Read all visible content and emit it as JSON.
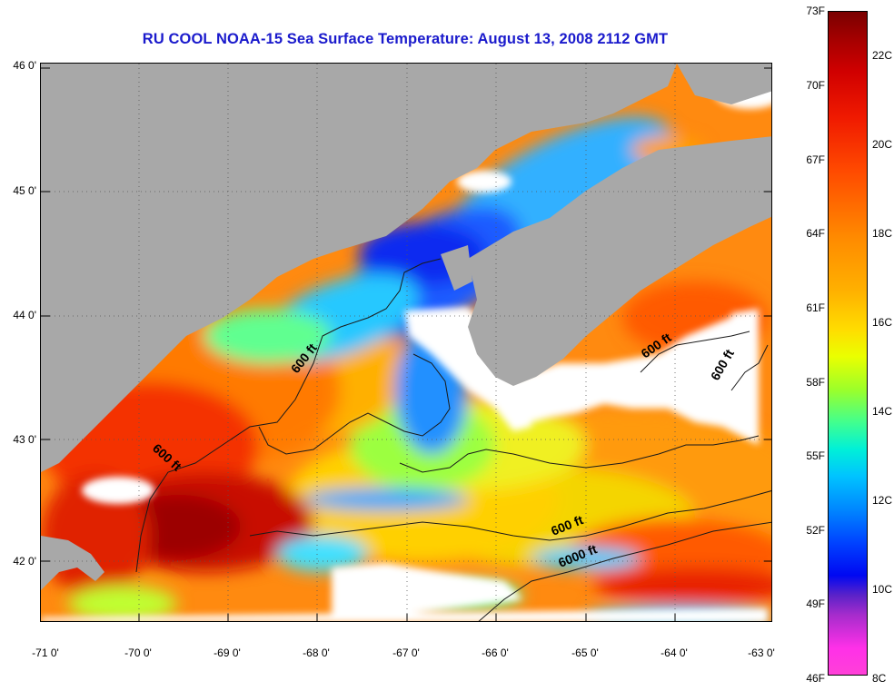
{
  "title": "RU COOL  NOAA-15  Sea Surface Temperature:  August 13, 2008 2112 GMT",
  "latitude_labels": [
    "46 0'",
    "45 0'",
    "44 0'",
    "43 0'",
    "42 0'"
  ],
  "longitude_labels": [
    "-71 0'",
    "-70 0'",
    "-69 0'",
    "-68 0'",
    "-67 0'",
    "-66 0'",
    "-65 0'",
    "-64 0'",
    "-63 0'"
  ],
  "contour_labels": [
    "600 ft",
    "600 ft",
    "600 ft",
    "600 ft",
    "600 ft",
    "6000 ft"
  ],
  "colorbar": {
    "fahrenheit_ticks": [
      "73F",
      "70F",
      "67F",
      "64F",
      "61F",
      "58F",
      "55F",
      "52F",
      "49F",
      "46F"
    ],
    "celsius_ticks": [
      "22C",
      "20C",
      "18C",
      "16C",
      "14C",
      "12C",
      "10C",
      "8C"
    ]
  },
  "colors": {
    "title": "#1a1acc",
    "land": "#a8a8a8",
    "cloud": "#ffffff",
    "warm": "#cc1010",
    "cool": "#1030e0"
  }
}
